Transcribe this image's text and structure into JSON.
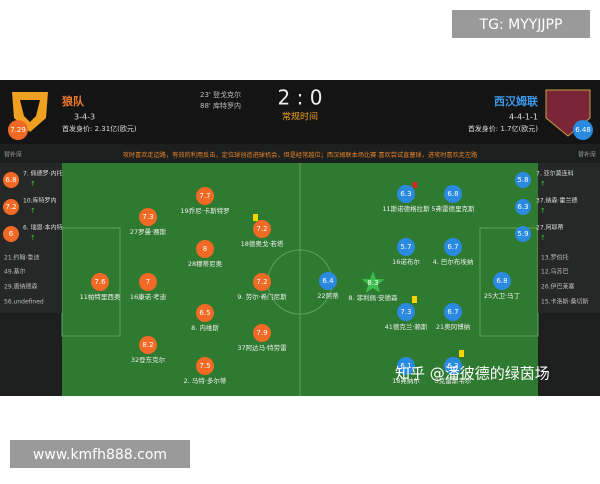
{
  "watermark_top": "TG: MYYJJPP",
  "watermark_bottom": "www.kmfh888.com",
  "home": {
    "name": "狼队",
    "formation": "3-4-3",
    "value": "首发身价: 2.31亿(欧元)",
    "rating": "7.29"
  },
  "away": {
    "name": "西汉姆联",
    "formation": "4-4-1-1",
    "value": "首发身价: 1.7亿(欧元)",
    "rating": "6.48"
  },
  "goals": [
    "23' 登戈克尔",
    "88' 库特罗内"
  ],
  "score": "2 : 0",
  "status": "常规时间",
  "bench_label_left": "替补席",
  "bench_label_right": "替补席",
  "analysis": "攻时喜欢走边路，有效的利用反击，定位球创造进球机会，但是经常越位；西汉姆联本场比赛 喜欢尝试直塞球，进攻时喜欢走左路",
  "home_subs": [
    {
      "name": "7. 佩德罗·内托",
      "rating": "6.8"
    },
    {
      "name": "10.库特罗内",
      "rating": "7.2"
    },
    {
      "name": "6. 瑞恩·本内特",
      "rating": "6"
    },
    {
      "name": "21.约翰·鲁迪"
    },
    {
      "name": "49.基尔"
    },
    {
      "name": "29.唐纳德森"
    },
    {
      "name": "56.undefined"
    }
  ],
  "away_subs": [
    {
      "name": "7. 亚尔莫连科",
      "rating": "5.8"
    },
    {
      "name": "37.纳森·霍兰德",
      "rating": "6.3"
    },
    {
      "name": "27.阿耶蒂",
      "rating": "5.9"
    },
    {
      "name": "13.罗伯托"
    },
    {
      "name": "12.乌苏巴"
    },
    {
      "name": "26.伊巴莱塞"
    },
    {
      "name": "15.卡洛斯·桑切斯"
    }
  ],
  "home_players": [
    {
      "name": "19乔尼·卡斯特罗",
      "rating": "7.7"
    },
    {
      "name": "27罗曼·赛斯",
      "rating": "7.3"
    },
    {
      "name": "18德奥戈·若塔",
      "rating": "7.2"
    },
    {
      "name": "28穆蒂尼奥",
      "rating": "8"
    },
    {
      "name": "11帕特里西奥",
      "rating": "7.6"
    },
    {
      "name": "16康诺·考迪",
      "rating": "7"
    },
    {
      "name": "9. 劳尔·希门尼斯",
      "rating": "7.2"
    },
    {
      "name": "8. 内维斯",
      "rating": "6.5"
    },
    {
      "name": "37阿达马·特劳雷",
      "rating": "7.9"
    },
    {
      "name": "32登东克尔",
      "rating": "8.2"
    },
    {
      "name": "2. 马特·多尔蒂",
      "rating": "7.5"
    }
  ],
  "away_players": [
    {
      "name": "11斯诺德格拉斯",
      "rating": "6.3"
    },
    {
      "name": "5弗雷德里克斯",
      "rating": "6.8"
    },
    {
      "name": "16诺布尔",
      "rating": "5.7"
    },
    {
      "name": "4. 巴尔布埃纳",
      "rating": "6.7"
    },
    {
      "name": "22阿蒂",
      "rating": "6.4"
    },
    {
      "name": "8. 菲利佩·安德森",
      "rating": "8.3"
    },
    {
      "name": "25大卫·马丁",
      "rating": "6.8"
    },
    {
      "name": "41德克兰·赖斯",
      "rating": "7.3"
    },
    {
      "name": "21奥冈博纳",
      "rating": "6.7"
    },
    {
      "name": "18弗纳尔",
      "rating": "6.1"
    },
    {
      "name": "3克雷斯韦尔",
      "rating": "6.3"
    }
  ],
  "overlay_text": "知乎 @潘彼德的绿茵场"
}
